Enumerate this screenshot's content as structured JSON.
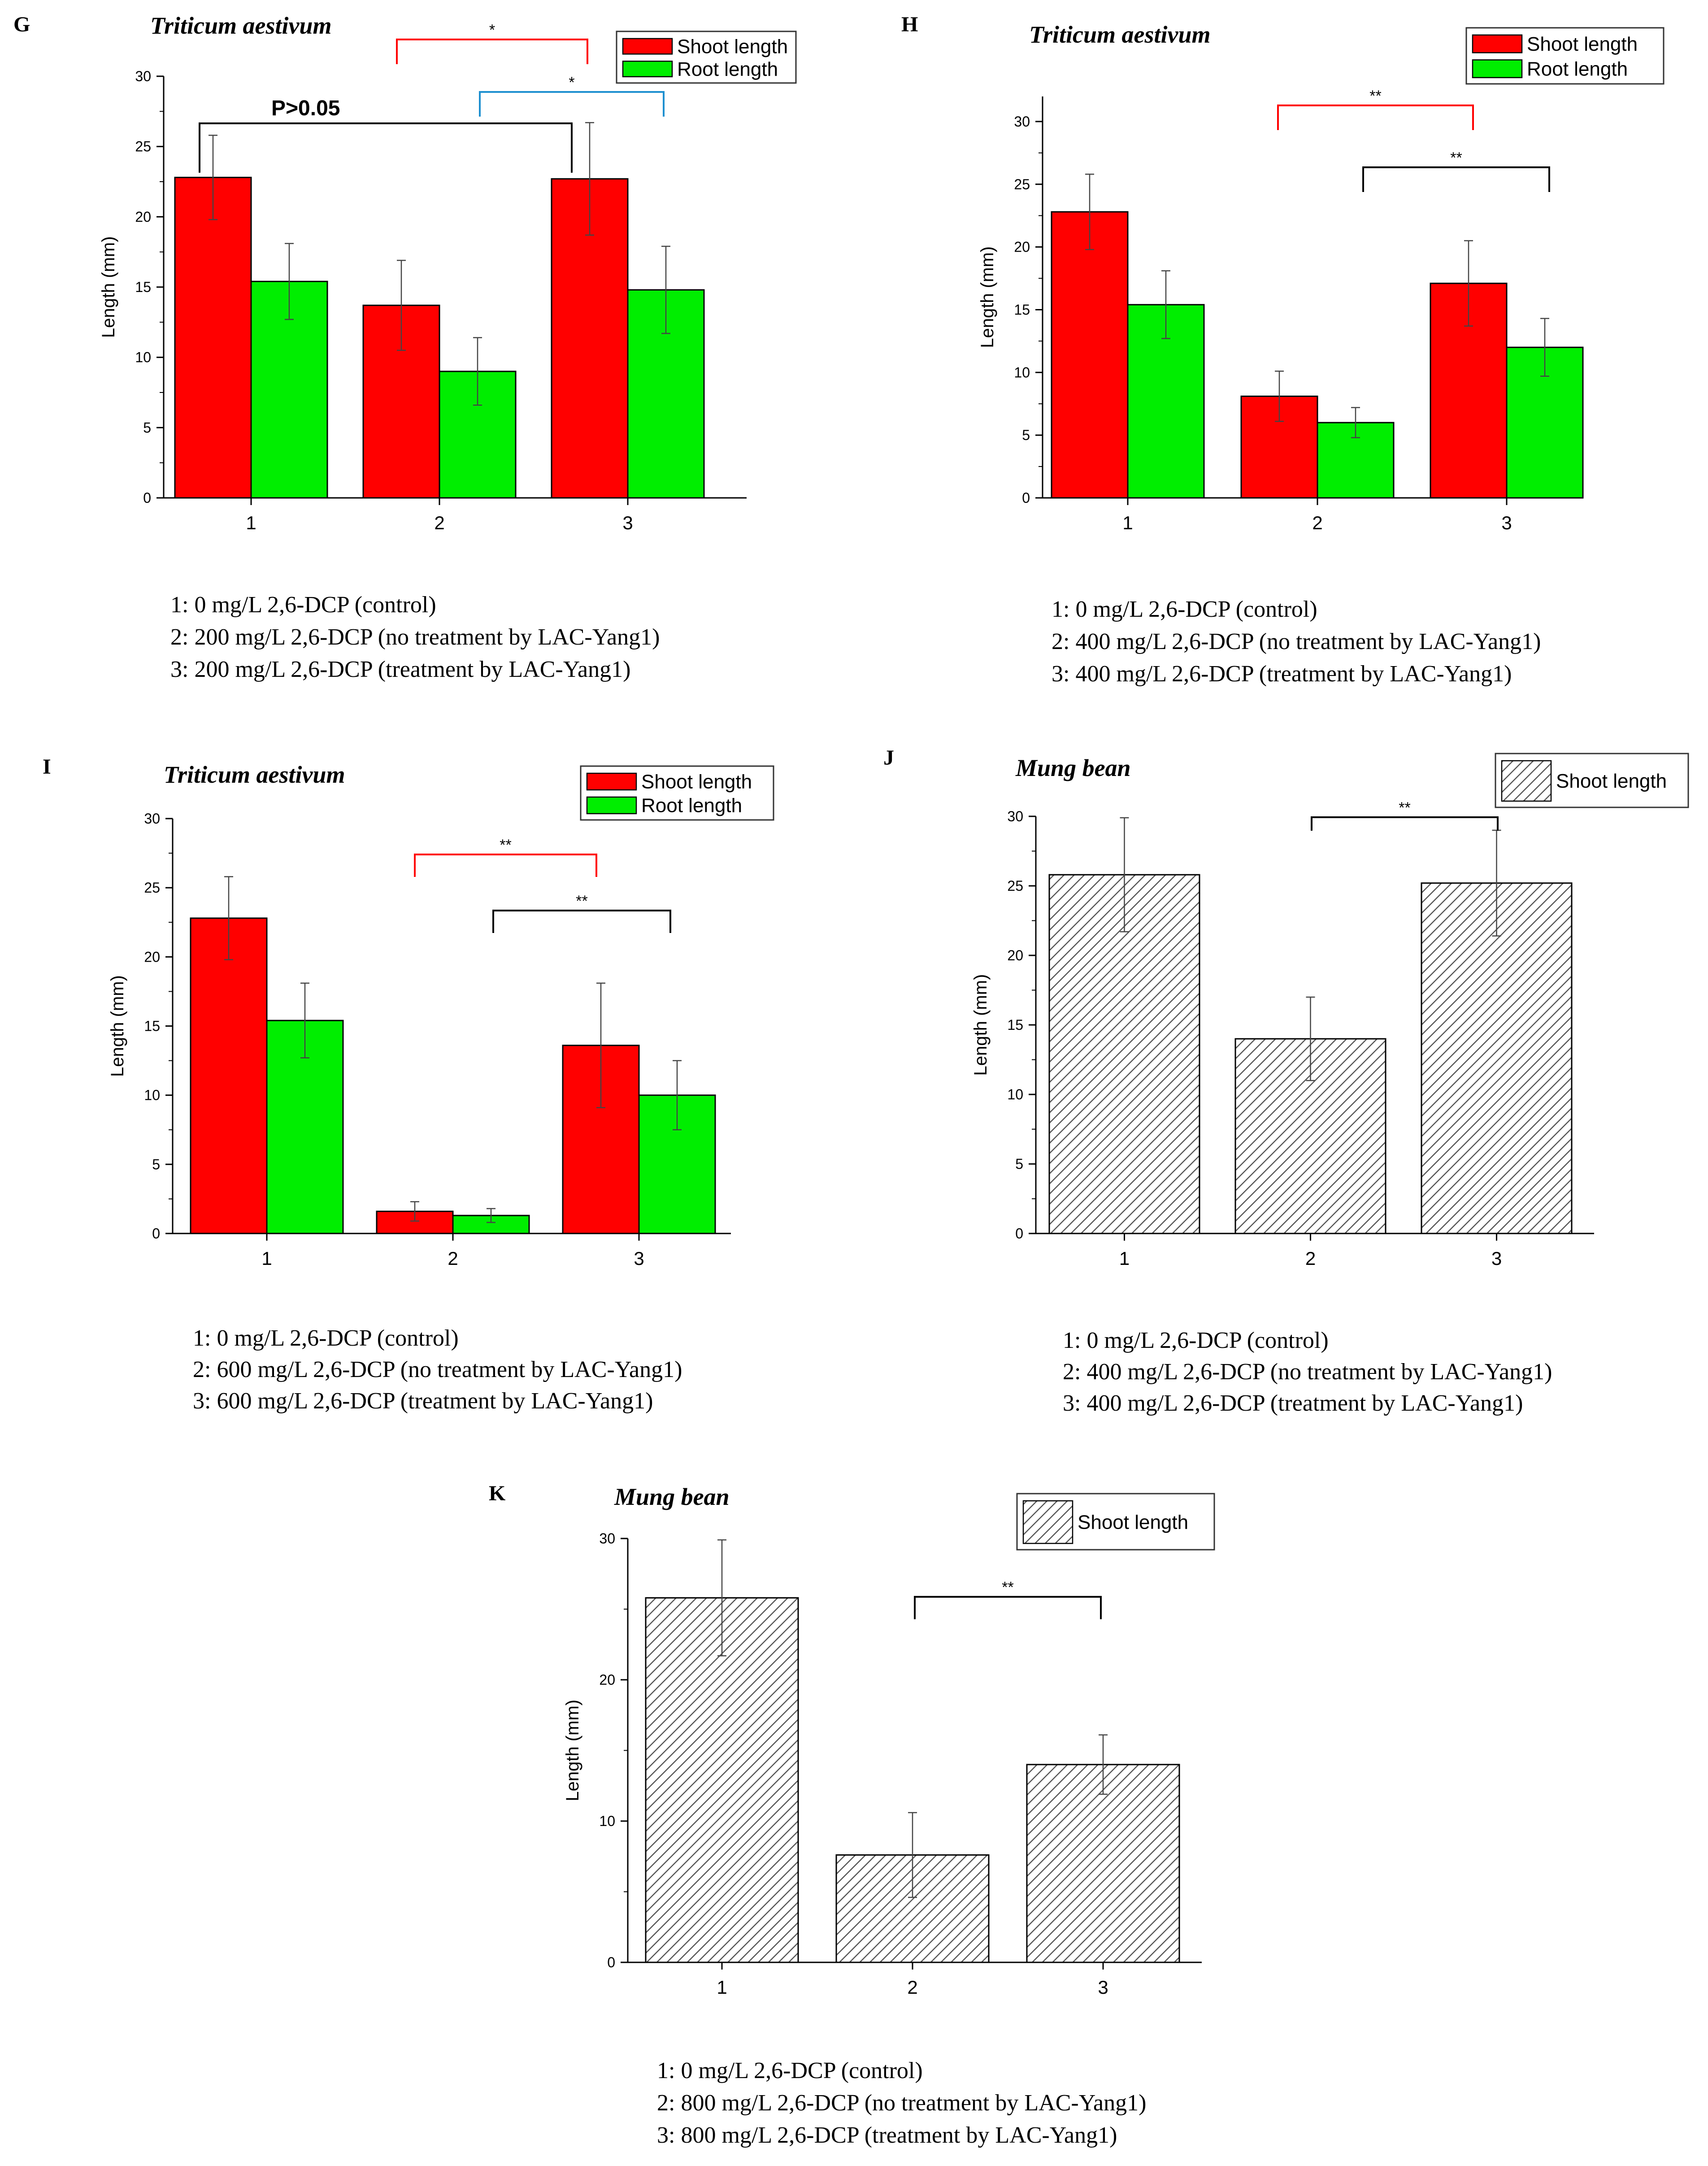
{
  "chart_data": [
    {
      "id": "G",
      "type": "bar",
      "title": "Triticum aestivum",
      "ylabel": "Length (mm)",
      "xlabel": "",
      "ylim": [
        0,
        30
      ],
      "yticks": [
        0,
        5,
        10,
        15,
        20,
        25,
        30
      ],
      "categories": [
        "1",
        "2",
        "3"
      ],
      "series": [
        {
          "name": "Shoot length",
          "color": "#ff0000",
          "values": [
            22.8,
            13.7,
            22.7
          ],
          "errors": [
            3.0,
            3.2,
            4.0
          ]
        },
        {
          "name": "Root length",
          "color": "#00ee00",
          "values": [
            15.4,
            9.0,
            14.8
          ],
          "errors": [
            2.7,
            2.4,
            3.1
          ]
        }
      ],
      "annotations": [
        {
          "text": "*",
          "color": "#ff0000"
        },
        {
          "text": "*",
          "color": "#1e90d0"
        },
        {
          "text": "P>0.05",
          "color": "#000000"
        }
      ],
      "caption": [
        "1:  0 mg/L 2,6-DCP (control)",
        "2:  200 mg/L 2,6-DCP (no treatment by LAC-Yang1)",
        "3:  200 mg/L 2,6-DCP (treatment by LAC-Yang1)"
      ]
    },
    {
      "id": "H",
      "type": "bar",
      "title": "Triticum aestivum",
      "ylabel": "Length (mm)",
      "xlabel": "",
      "ylim": [
        0,
        32
      ],
      "yticks": [
        0,
        5,
        10,
        15,
        20,
        25,
        30
      ],
      "categories": [
        "1",
        "2",
        "3"
      ],
      "series": [
        {
          "name": "Shoot length",
          "color": "#ff0000",
          "values": [
            22.8,
            8.1,
            17.1
          ],
          "errors": [
            3.0,
            2.0,
            3.4
          ]
        },
        {
          "name": "Root length",
          "color": "#00ee00",
          "values": [
            15.4,
            6.0,
            12.0
          ],
          "errors": [
            2.7,
            1.2,
            2.3
          ]
        }
      ],
      "annotations": [
        {
          "text": "**",
          "color": "#ff0000"
        },
        {
          "text": "**",
          "color": "#000000"
        }
      ],
      "caption": [
        "1:  0 mg/L 2,6-DCP (control)",
        "2:  400 mg/L 2,6-DCP (no treatment by LAC-Yang1)",
        "3:  400 mg/L 2,6-DCP (treatment by LAC-Yang1)"
      ]
    },
    {
      "id": "I",
      "type": "bar",
      "title": "Triticum aestivum",
      "ylabel": "Length (mm)",
      "xlabel": "",
      "ylim": [
        0,
        30
      ],
      "yticks": [
        0,
        5,
        10,
        15,
        20,
        25,
        30
      ],
      "categories": [
        "1",
        "2",
        "3"
      ],
      "series": [
        {
          "name": "Shoot length",
          "color": "#ff0000",
          "values": [
            22.8,
            1.6,
            13.6
          ],
          "errors": [
            3.0,
            0.7,
            4.5
          ]
        },
        {
          "name": "Root length",
          "color": "#00ee00",
          "values": [
            15.4,
            1.3,
            10.0
          ],
          "errors": [
            2.7,
            0.5,
            2.5
          ]
        }
      ],
      "annotations": [
        {
          "text": "**",
          "color": "#ff0000"
        },
        {
          "text": "**",
          "color": "#000000"
        }
      ],
      "caption": [
        "1:  0 mg/L 2,6-DCP (control)",
        "2:  600 mg/L 2,6-DCP (no treatment by LAC-Yang1)",
        "3:  600 mg/L 2,6-DCP (treatment by LAC-Yang1)"
      ]
    },
    {
      "id": "J",
      "type": "bar",
      "title": "Mung bean",
      "ylabel": "Length (mm)",
      "xlabel": "",
      "ylim": [
        0,
        30
      ],
      "yticks": [
        0,
        5,
        10,
        15,
        20,
        25,
        30
      ],
      "categories": [
        "1",
        "2",
        "3"
      ],
      "series": [
        {
          "name": "Shoot length",
          "color": "#cccccc",
          "pattern": "hatch",
          "values": [
            25.8,
            14.0,
            25.2
          ],
          "errors": [
            4.1,
            3.0,
            3.8
          ]
        }
      ],
      "annotations": [
        {
          "text": "**",
          "color": "#000000"
        }
      ],
      "caption": [
        "1:  0 mg/L 2,6-DCP (control)",
        "2:  400 mg/L 2,6-DCP (no treatment by LAC-Yang1)",
        "3:  400 mg/L 2,6-DCP (treatment by LAC-Yang1)"
      ]
    },
    {
      "id": "K",
      "type": "bar",
      "title": "Mung bean",
      "ylabel": "Length (mm)",
      "xlabel": "",
      "ylim": [
        0,
        30
      ],
      "yticks": [
        0,
        10,
        20,
        30
      ],
      "categories": [
        "1",
        "2",
        "3"
      ],
      "series": [
        {
          "name": "Shoot length",
          "color": "#cccccc",
          "pattern": "hatch",
          "values": [
            25.8,
            7.6,
            14.0
          ],
          "errors": [
            4.1,
            3.0,
            2.1
          ]
        }
      ],
      "annotations": [
        {
          "text": "**",
          "color": "#000000"
        }
      ],
      "caption": [
        "1:  0 mg/L 2,6-DCP (control)",
        "2:  800 mg/L 2,6-DCP (no treatment by LAC-Yang1)",
        "3:  800 mg/L 2,6-DCP (treatment by LAC-Yang1)"
      ]
    }
  ]
}
